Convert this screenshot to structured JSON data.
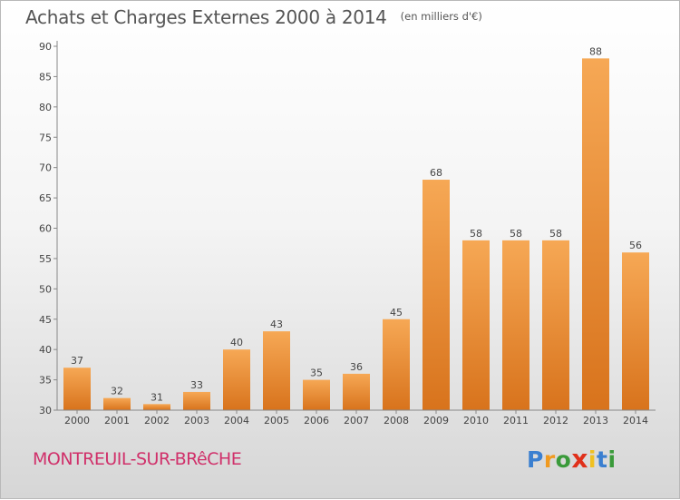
{
  "chart_data": {
    "type": "bar",
    "title": "Achats et Charges Externes 2000 à 2014",
    "subtitle": "(en milliers d'€)",
    "categories": [
      "2000",
      "2001",
      "2002",
      "2003",
      "2004",
      "2005",
      "2006",
      "2007",
      "2008",
      "2009",
      "2010",
      "2011",
      "2012",
      "2013",
      "2014"
    ],
    "values": [
      37,
      32,
      31,
      33,
      40,
      43,
      35,
      36,
      45,
      68,
      58,
      58,
      58,
      88,
      56
    ],
    "ylim": [
      30,
      90
    ],
    "yticks": [
      30,
      35,
      40,
      45,
      50,
      55,
      60,
      65,
      70,
      75,
      80,
      85,
      90
    ],
    "grid": false,
    "bar_color": "#f0a050"
  },
  "footer": {
    "commune": "MONTREUIL-SUR-BRêCHE",
    "commune_color": "#d0306a"
  },
  "logo": {
    "letters": [
      "P",
      "r",
      "o",
      "x",
      "i",
      "t",
      "i"
    ],
    "colors": [
      "#3a7fd0",
      "#f09a20",
      "#3a9a3a",
      "#e0301a",
      "#f0c020",
      "#3a7fd0",
      "#3a9a3a"
    ]
  }
}
